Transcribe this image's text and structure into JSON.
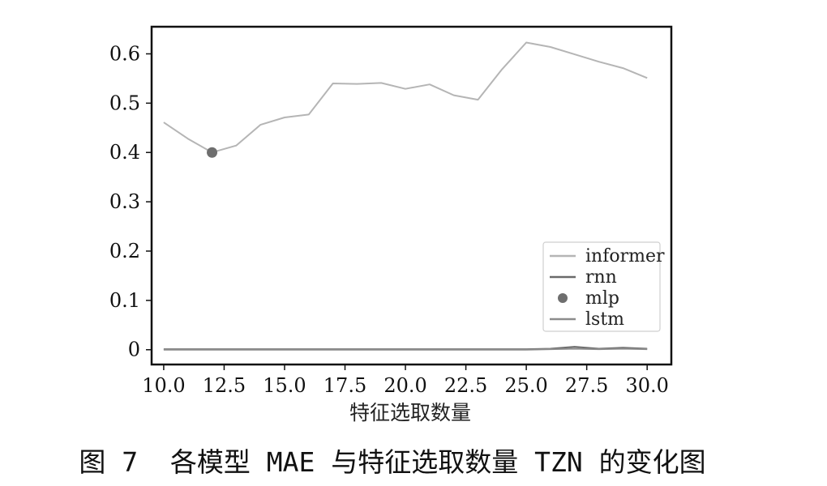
{
  "chart_data": {
    "type": "line",
    "xlabel": "特征选取数量",
    "ylabel": "",
    "title": "",
    "xlim": [
      9.5,
      31
    ],
    "ylim": [
      -0.03,
      0.655
    ],
    "xticks": [
      10,
      12.5,
      15,
      17.5,
      20,
      22.5,
      25,
      27.5,
      30
    ],
    "xtick_labels": [
      "10.0",
      "12.5",
      "15.0",
      "17.5",
      "20.0",
      "22.5",
      "25.0",
      "27.5",
      "30.0"
    ],
    "yticks": [
      0,
      0.1,
      0.2,
      0.3,
      0.4,
      0.5,
      0.6
    ],
    "ytick_labels": [
      "0",
      "0.1",
      "0.2",
      "0.3",
      "0.4",
      "0.5",
      "0.6"
    ],
    "grid": false,
    "legend_position": "lower-right",
    "series": [
      {
        "name": "informer",
        "kind": "line",
        "color": "#b5b5b5",
        "x": [
          10,
          11,
          12,
          13,
          14,
          15,
          16,
          17,
          18,
          19,
          20,
          21,
          22,
          23,
          24,
          25,
          26,
          27,
          28,
          29,
          30
        ],
        "y": [
          0.461,
          0.428,
          0.4,
          0.414,
          0.456,
          0.471,
          0.477,
          0.54,
          0.539,
          0.541,
          0.529,
          0.538,
          0.516,
          0.507,
          0.569,
          0.623,
          0.614,
          0.599,
          0.584,
          0.571,
          0.551
        ]
      },
      {
        "name": "rnn",
        "kind": "line",
        "color": "#6a6a6a",
        "x": [
          10,
          11,
          12,
          13,
          14,
          15,
          16,
          17,
          18,
          19,
          20,
          21,
          22,
          23,
          24,
          25,
          26,
          27,
          28,
          29,
          30
        ],
        "y": [
          0.001,
          0.001,
          0.001,
          0.001,
          0.001,
          0.001,
          0.001,
          0.001,
          0.001,
          0.001,
          0.001,
          0.001,
          0.001,
          0.001,
          0.001,
          0.001,
          0.002,
          0.006,
          0.002,
          0.004,
          0.002
        ]
      },
      {
        "name": "mlp",
        "kind": "scatter",
        "color": "#6e6e6e",
        "x": [
          12
        ],
        "y": [
          0.4
        ]
      },
      {
        "name": "lstm",
        "kind": "line",
        "color": "#8c8c8c",
        "x": [
          10,
          11,
          12,
          13,
          14,
          15,
          16,
          17,
          18,
          19,
          20,
          21,
          22,
          23,
          24,
          25,
          26,
          27,
          28,
          29,
          30
        ],
        "y": [
          0.0,
          0.0,
          0.0,
          0.0,
          0.0,
          0.0,
          0.0,
          0.0,
          0.0,
          0.0,
          0.0,
          0.0,
          0.0,
          0.0,
          0.0,
          0.0,
          0.001,
          0.002,
          0.001,
          0.002,
          0.001
        ]
      }
    ]
  },
  "caption": "图 7  各模型 MAE 与特征选取数量 TZN 的变化图"
}
